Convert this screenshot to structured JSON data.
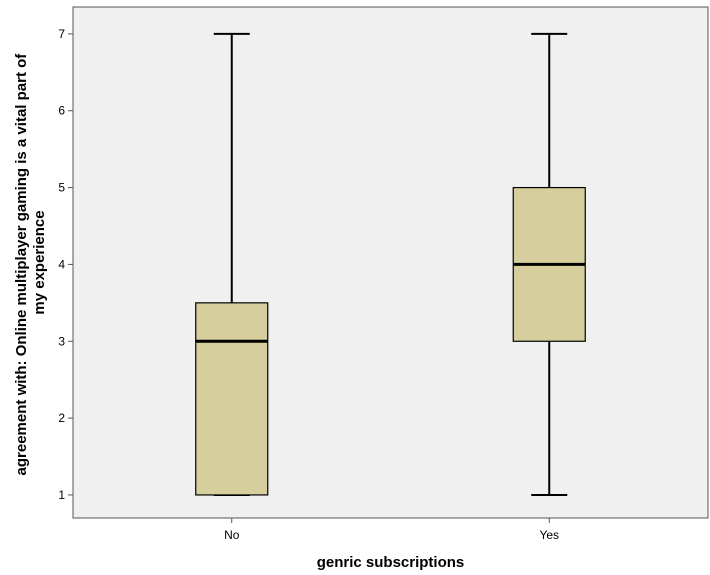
{
  "chart_data": {
    "type": "boxplot",
    "xlabel": "genric subscriptions",
    "ylabel": "agreement with: Online multiplayer gaming is a vital part of my experience",
    "ylabel_lines": [
      "agreement with: Online multiplayer gaming is a vital part of",
      "my experience"
    ],
    "categories": [
      "No",
      "Yes"
    ],
    "yticks": [
      1,
      2,
      3,
      4,
      5,
      6,
      7
    ],
    "ylim": [
      0.7,
      7.35
    ],
    "grid": false,
    "boxes": [
      {
        "category": "No",
        "min": 1,
        "q1": 1,
        "median": 3,
        "q3": 3.5,
        "max": 7
      },
      {
        "category": "Yes",
        "min": 1,
        "q1": 3,
        "median": 4,
        "q3": 5,
        "max": 7
      }
    ],
    "colors": {
      "plot_background": "#f0f0f0",
      "box_fill": "#d6cf9d",
      "line": "#000000",
      "axis": "#555555"
    }
  }
}
